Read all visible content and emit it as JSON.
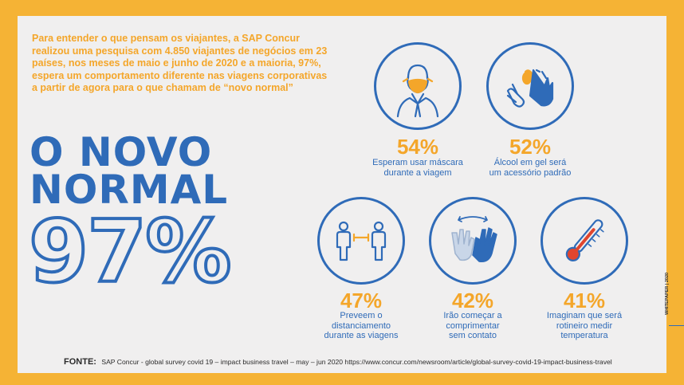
{
  "intro": "Para entender o que pensam os viajantes, a SAP Concur realizou uma pesquisa com 4.850 viajantes de negócios em 23 países, nos meses de maio e junho de 2020 e a maioria, 97%, espera um comportamento diferente nas viagens corporativas a partir de agora para o que chamam de “novo normal”",
  "headline": {
    "line1": "O NOVO",
    "line2": "NORMAL",
    "big_percent": "97%"
  },
  "stats": [
    {
      "percent": "54%",
      "line1": "Esperam usar máscara",
      "line2": "durante a viagem",
      "line3": "",
      "icon": "mask-person-icon"
    },
    {
      "percent": "52%",
      "line1": "Álcool em gel será",
      "line2": "um acessório padrão",
      "line3": "",
      "icon": "hand-sanitizer-icon"
    },
    {
      "percent": "47%",
      "line1": "Preveem o",
      "line2": "distanciamento",
      "line3": "durante as viagens",
      "icon": "social-distance-icon"
    },
    {
      "percent": "42%",
      "line1": "Irão começar a",
      "line2": "comprimentar",
      "line3": "sem contato",
      "icon": "contactless-greeting-icon"
    },
    {
      "percent": "41%",
      "line1": "Imaginam que será",
      "line2": "rotineiro medir",
      "line3": "temperatura",
      "icon": "thermometer-icon"
    }
  ],
  "source": {
    "label": "FONTE:",
    "text": "SAP Concur - global survey covid 19 – impact business travel – may – jun 2020 https://www.concur.com/newsroom/article/global-survey-covid-19-impact-business-travel"
  },
  "side_label": "WHITEPAPER | 2020",
  "colors": {
    "background": "#f5b335",
    "panel": "#f0efef",
    "blue": "#2f6bb8",
    "orange": "#f4a62a"
  }
}
